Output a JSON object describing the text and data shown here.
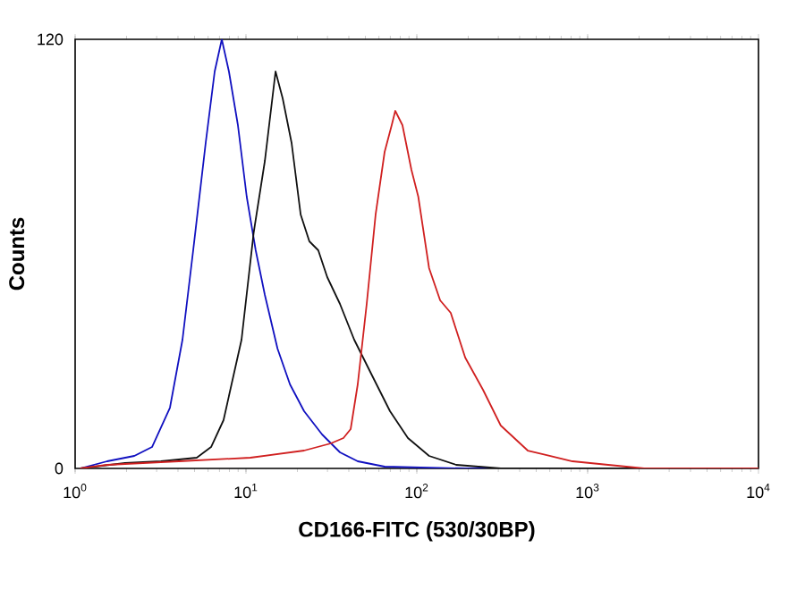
{
  "chart_data": {
    "type": "line",
    "xlabel": "CD166-FITC (530/30BP)",
    "ylabel": "Counts",
    "log": "x",
    "xlim": [
      1,
      10000
    ],
    "ylim": [
      0,
      120
    ],
    "xticks": [
      {
        "value": 1,
        "label": "10$^{0}$"
      },
      {
        "value": 10,
        "label": "10$^{1}$"
      },
      {
        "value": 100,
        "label": "10$^{2}$"
      },
      {
        "value": 1000,
        "label": "10$^{3}$"
      },
      {
        "value": 10000,
        "label": "10$^{4}$"
      }
    ],
    "yticks": [
      0,
      120
    ],
    "grid": false,
    "marker": "none",
    "line_style": "solid",
    "series": [
      {
        "color": "#1010c0",
        "x": [
          1.07,
          1.54,
          2.22,
          2.82,
          3.59,
          4.25,
          4.91,
          5.81,
          6.56,
          7.22,
          7.95,
          8.97,
          10.1,
          11.4,
          12.9,
          15.3,
          18.1,
          21.9,
          27.9,
          35.5,
          45.1,
          64.8,
          192,
          10000
        ],
        "values": [
          0,
          2,
          3.5,
          6,
          17,
          36,
          61,
          91,
          111,
          120,
          111,
          96,
          76,
          61,
          48.5,
          33.5,
          23.5,
          16,
          9.5,
          4.5,
          2,
          0.5,
          0,
          0
        ]
      },
      {
        "color": "#101010",
        "x": [
          1.07,
          1.96,
          3.18,
          5.15,
          6.25,
          7.39,
          9.42,
          11.1,
          12.9,
          14.9,
          16.4,
          18.5,
          20.9,
          23.5,
          26.5,
          29.9,
          35.5,
          43.0,
          54.7,
          69.7,
          88.7,
          118,
          170,
          310,
          10000
        ],
        "values": [
          0,
          1.5,
          2,
          3,
          6,
          13.5,
          36,
          66,
          86,
          111,
          103.5,
          91,
          71,
          63.5,
          61,
          53.5,
          46,
          36,
          26,
          16,
          8.5,
          3.5,
          1,
          0,
          0
        ]
      },
      {
        "color": "#d02020",
        "x": [
          1.07,
          1.54,
          4.05,
          10.6,
          21.9,
          31.4,
          37.2,
          41.0,
          45.1,
          50.9,
          57.4,
          64.8,
          71.3,
          74.8,
          82.4,
          93.0,
          102,
          118,
          137,
          158,
          192,
          244,
          310,
          446,
          815,
          1320,
          2140,
          10000
        ],
        "values": [
          0,
          1,
          2,
          3,
          5,
          7,
          8.5,
          11,
          23.5,
          46,
          71,
          88.5,
          96,
          100,
          96,
          83.5,
          76,
          56,
          47,
          43.5,
          31,
          22,
          12,
          5,
          2,
          1,
          0,
          0
        ]
      }
    ]
  }
}
